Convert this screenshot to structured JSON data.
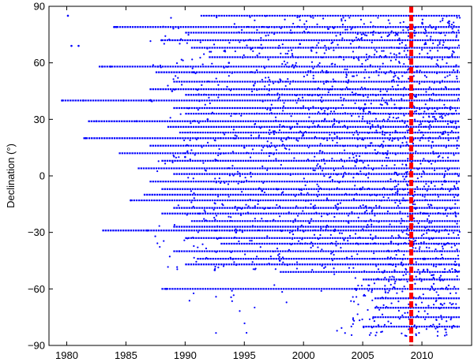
{
  "chart_data": {
    "type": "scatter",
    "title": "",
    "xlabel": "",
    "ylabel": "Declination (°)",
    "xlim": [
      1978.5,
      2014.2
    ],
    "ylim": [
      -90,
      90
    ],
    "x_ticks": [
      1980,
      1985,
      1990,
      1995,
      2000,
      2005,
      2010
    ],
    "y_ticks": [
      -90,
      -60,
      -30,
      0,
      30,
      60,
      90
    ],
    "x_tick_labels": [
      "1980",
      "1985",
      "1990",
      "1995",
      "2000",
      "2005",
      "2010"
    ],
    "y_tick_labels": [
      "−90",
      "−60",
      "−30",
      "0",
      "30",
      "60",
      "90"
    ],
    "grid": false,
    "colors": {
      "points": "#0000ff",
      "reference_line": "#ff0000",
      "axes": "#000000"
    },
    "reference_line": {
      "orientation": "vertical",
      "x": 2009.1,
      "style": "dashed"
    },
    "series": [
      {
        "points_approx": [
          [
            1979.6,
            40
          ],
          [
            1980.1,
            85
          ],
          [
            1980.4,
            69
          ],
          [
            1981.0,
            69
          ],
          [
            1981.4,
            40
          ],
          [
            1981.6,
            20
          ],
          [
            1982.5,
            29
          ],
          [
            1983.0,
            58
          ],
          [
            1983.7,
            58
          ],
          [
            1984.0,
            79
          ],
          [
            1984.2,
            79
          ],
          [
            1984.8,
            40
          ],
          [
            1985.4,
            -13
          ],
          [
            1985.9,
            29
          ],
          [
            1986.3,
            40
          ],
          [
            1986.8,
            -29
          ],
          [
            1987.1,
            40
          ],
          [
            1987.7,
            58
          ],
          [
            1988.0,
            72
          ],
          [
            1988.4,
            -60
          ],
          [
            1988.9,
            45
          ],
          [
            1989.5,
            -40
          ],
          [
            1990.0,
            10
          ],
          [
            1990.7,
            55
          ],
          [
            1991.2,
            -20
          ],
          [
            1991.9,
            30
          ],
          [
            1992.5,
            -50
          ],
          [
            1993.0,
            20
          ],
          [
            1993.7,
            60
          ],
          [
            1994.3,
            -30
          ],
          [
            1995.0,
            15
          ],
          [
            1995.8,
            48
          ],
          [
            1996.5,
            -8
          ],
          [
            1997.2,
            35
          ],
          [
            1998.0,
            -45
          ],
          [
            1998.9,
            25
          ],
          [
            1999.7,
            70
          ],
          [
            2000.5,
            -25
          ],
          [
            2001.4,
            5
          ],
          [
            2002.1,
            78
          ],
          [
            2002.9,
            -15
          ],
          [
            2003.6,
            50
          ],
          [
            2004.4,
            -60
          ],
          [
            2005.2,
            38
          ],
          [
            2005.9,
            -75
          ],
          [
            2006.7,
            12
          ],
          [
            2007.4,
            -35
          ],
          [
            2008.1,
            65
          ],
          [
            2008.8,
            -5
          ],
          [
            2009.5,
            42
          ],
          [
            2010.2,
            -55
          ],
          [
            2010.9,
            18
          ],
          [
            2011.6,
            -68
          ],
          [
            2012.3,
            82
          ],
          [
            2013.0,
            -80
          ],
          [
            2013.1,
            0
          ]
        ],
        "horizontal_tracks": [
          {
            "dec": 85,
            "from": 1991.3,
            "to": 2013.2
          },
          {
            "dec": 79,
            "from": 1984.0,
            "to": 2013.2
          },
          {
            "dec": 76,
            "from": 1990.0,
            "to": 2013.2
          },
          {
            "dec": 72,
            "from": 1988.0,
            "to": 2013.2
          },
          {
            "dec": 68,
            "from": 1990.5,
            "to": 2013.2
          },
          {
            "dec": 63,
            "from": 1992.0,
            "to": 2013.2
          },
          {
            "dec": 58,
            "from": 1982.7,
            "to": 2013.2
          },
          {
            "dec": 55,
            "from": 1987.5,
            "to": 2013.2
          },
          {
            "dec": 50,
            "from": 1989.0,
            "to": 2013.2
          },
          {
            "dec": 46,
            "from": 1987.0,
            "to": 2013.2
          },
          {
            "dec": 43,
            "from": 1990.0,
            "to": 2013.2
          },
          {
            "dec": 40,
            "from": 1979.6,
            "to": 2013.2
          },
          {
            "dec": 36,
            "from": 1989.0,
            "to": 2013.2
          },
          {
            "dec": 33,
            "from": 1990.0,
            "to": 2013.2
          },
          {
            "dec": 29,
            "from": 1981.8,
            "to": 2013.2
          },
          {
            "dec": 26,
            "from": 1988.5,
            "to": 2013.2
          },
          {
            "dec": 23,
            "from": 1989.5,
            "to": 2013.2
          },
          {
            "dec": 20,
            "from": 1981.4,
            "to": 2013.2
          },
          {
            "dec": 16,
            "from": 1987.0,
            "to": 2013.2
          },
          {
            "dec": 12,
            "from": 1984.4,
            "to": 2013.2
          },
          {
            "dec": 8,
            "from": 1988.0,
            "to": 2013.2
          },
          {
            "dec": 4,
            "from": 1986.0,
            "to": 2013.2
          },
          {
            "dec": 1,
            "from": 1989.0,
            "to": 2013.2
          },
          {
            "dec": -3,
            "from": 1987.0,
            "to": 2013.2
          },
          {
            "dec": -7,
            "from": 1988.0,
            "to": 2013.2
          },
          {
            "dec": -10,
            "from": 1986.5,
            "to": 2013.2
          },
          {
            "dec": -13,
            "from": 1985.4,
            "to": 2013.2
          },
          {
            "dec": -17,
            "from": 1989.0,
            "to": 2013.2
          },
          {
            "dec": -20,
            "from": 1988.0,
            "to": 2013.2
          },
          {
            "dec": -24,
            "from": 1990.5,
            "to": 2013.2
          },
          {
            "dec": -27,
            "from": 1989.0,
            "to": 2013.2
          },
          {
            "dec": -29,
            "from": 1983.0,
            "to": 2013.2
          },
          {
            "dec": -33,
            "from": 1990.0,
            "to": 2013.2
          },
          {
            "dec": -36,
            "from": 1993.0,
            "to": 2013.2
          },
          {
            "dec": -40,
            "from": 1989.0,
            "to": 2013.2
          },
          {
            "dec": -44,
            "from": 1991.0,
            "to": 2013.2
          },
          {
            "dec": -47,
            "from": 1990.0,
            "to": 2013.2
          },
          {
            "dec": -51,
            "from": 1998.0,
            "to": 2013.2
          },
          {
            "dec": -55,
            "from": 2005.0,
            "to": 2013.2
          },
          {
            "dec": -60,
            "from": 1988.0,
            "to": 2013.2
          },
          {
            "dec": -65,
            "from": 2006.0,
            "to": 2013.2
          },
          {
            "dec": -70,
            "from": 2006.0,
            "to": 2013.2
          },
          {
            "dec": -75,
            "from": 2006.0,
            "to": 2013.2
          },
          {
            "dec": -80,
            "from": 2005.0,
            "to": 2013.2
          }
        ]
      }
    ]
  }
}
